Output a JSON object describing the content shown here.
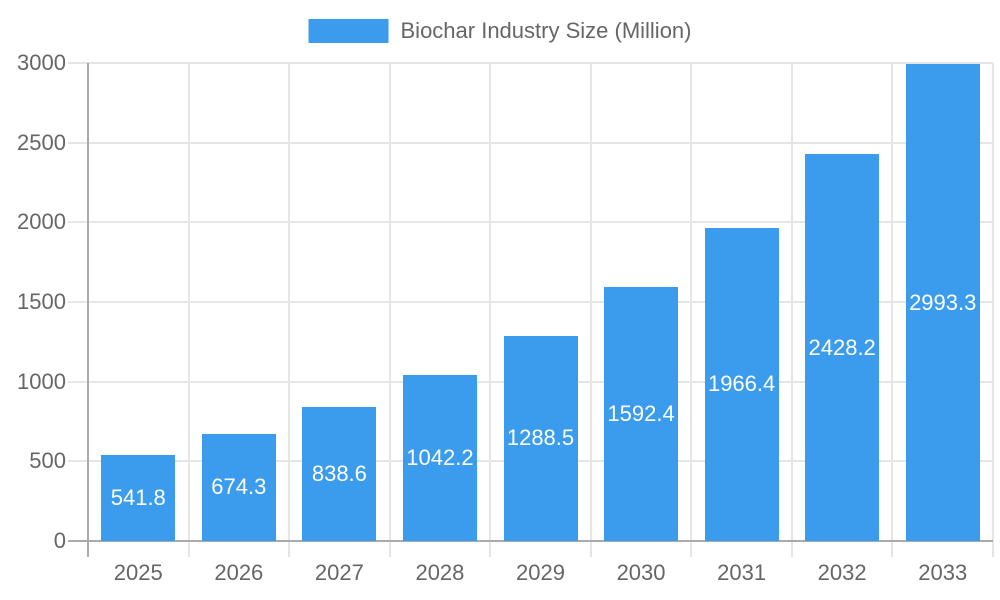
{
  "chart_data": {
    "type": "bar",
    "title": "",
    "legend": {
      "label": "Biochar Industry Size (Million)",
      "position": "top-center"
    },
    "categories": [
      "2025",
      "2026",
      "2027",
      "2028",
      "2029",
      "2030",
      "2031",
      "2032",
      "2033"
    ],
    "series": [
      {
        "name": "Biochar Industry Size (Million)",
        "values": [
          541.8,
          674.3,
          838.6,
          1042.2,
          1288.5,
          1592.4,
          1966.4,
          2428.2,
          2993.3
        ]
      }
    ],
    "value_labels": [
      "541.8",
      "674.3",
      "838.6",
      "1042.2",
      "1288.5",
      "1592.4",
      "1966.4",
      "2428.2",
      "2993.3"
    ],
    "xlabel": "",
    "ylabel": "",
    "ylim": [
      0,
      3000
    ],
    "y_ticks": [
      0,
      500,
      1000,
      1500,
      2000,
      2500,
      3000
    ],
    "grid": true,
    "colors": {
      "bar": "#3B9CEE",
      "grid": "#E5E5E5",
      "axis": "#AAAAAA",
      "text": "#666666",
      "value_label": "#FFFFFF",
      "background": "#FFFFFF"
    }
  }
}
